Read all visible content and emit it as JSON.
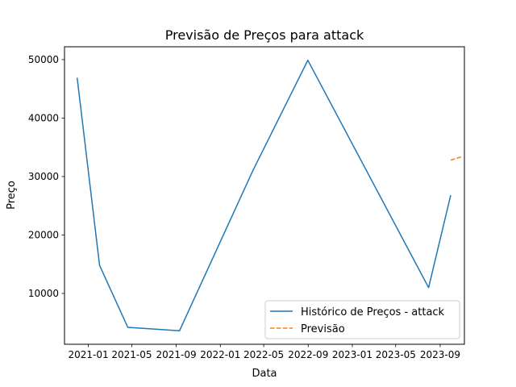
{
  "chart_data": {
    "type": "line",
    "title": "Previsão de Preços para attack",
    "xlabel": "Data",
    "ylabel": "Preço",
    "x_ticks": [
      "2021-01",
      "2021-05",
      "2021-09",
      "2022-01",
      "2022-05",
      "2022-09",
      "2023-01",
      "2023-05",
      "2023-09"
    ],
    "y_ticks": [
      10000,
      20000,
      30000,
      40000,
      50000
    ],
    "xlim": [
      "2020-10-27",
      "2023-11-07"
    ],
    "ylim": [
      1300,
      52200
    ],
    "grid": false,
    "legend_position": "lower-right",
    "series": [
      {
        "name": "Histórico de Preços - attack",
        "color": "#1f77b4",
        "style": "solid",
        "points": [
          {
            "x": "2020-12-01",
            "y": 46900
          },
          {
            "x": "2021-02-01",
            "y": 14800
          },
          {
            "x": "2021-04-20",
            "y": 4200
          },
          {
            "x": "2021-09-10",
            "y": 3600
          },
          {
            "x": "2022-04-01",
            "y": 31000
          },
          {
            "x": "2022-08-31",
            "y": 49900
          },
          {
            "x": "2023-07-31",
            "y": 11000
          },
          {
            "x": "2023-09-30",
            "y": 26800
          }
        ]
      },
      {
        "name": "Previsão",
        "color": "#ff7f0e",
        "style": "dashed",
        "points": [
          {
            "x": "2023-09-30",
            "y": 32800
          },
          {
            "x": "2023-10-31",
            "y": 33400
          }
        ]
      }
    ]
  }
}
